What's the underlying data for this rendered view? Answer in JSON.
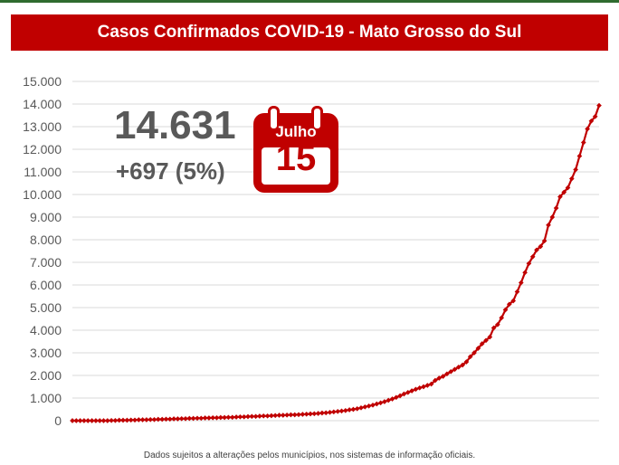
{
  "header": {
    "title": "Casos Confirmados COVID-19 - Mato Grosso do Sul"
  },
  "highlight": {
    "total": "14.631",
    "delta": "+697 (5%)",
    "month": "Julho",
    "day": "15"
  },
  "footnote": "Dados sujeitos a alterações pelos municípios, nos sistemas de informação oficiais.",
  "colors": {
    "accent": "#c00000",
    "text_gray": "#595959",
    "grid": "#d9d9d9"
  },
  "chart_data": {
    "type": "line",
    "title": "Casos Confirmados COVID-19 - Mato Grosso do Sul",
    "xlabel": "",
    "ylabel": "",
    "ylim": [
      0,
      15000
    ],
    "y_ticks": [
      "0",
      "1.000",
      "2.000",
      "3.000",
      "4.000",
      "5.000",
      "6.000",
      "7.000",
      "8.000",
      "9.000",
      "10.000",
      "11.000",
      "12.000",
      "13.000",
      "14.000",
      "15.000"
    ],
    "grid": true,
    "legend": "none",
    "series": [
      {
        "values": [
          0,
          0,
          0,
          0,
          0,
          0,
          0,
          0,
          0,
          0,
          10,
          10,
          20,
          20,
          20,
          30,
          30,
          40,
          40,
          40,
          50,
          50,
          60,
          60,
          70,
          70,
          80,
          80,
          90,
          90,
          100,
          100,
          110,
          110,
          120,
          120,
          130,
          130,
          140,
          140,
          150,
          150,
          160,
          170,
          170,
          180,
          190,
          190,
          200,
          210,
          210,
          220,
          230,
          240,
          240,
          250,
          260,
          260,
          270,
          280,
          290,
          300,
          310,
          320,
          340,
          350,
          370,
          390,
          410,
          430,
          450,
          480,
          500,
          530,
          570,
          610,
          650,
          690,
          740,
          790,
          840,
          900,
          960,
          1030,
          1100,
          1180,
          1250,
          1320,
          1390,
          1450,
          1500,
          1560,
          1620,
          1780,
          1880,
          1960,
          2070,
          2170,
          2270,
          2370,
          2460,
          2600,
          2830,
          3000,
          3200,
          3400,
          3550,
          3700,
          4100,
          4250,
          4550,
          4900,
          5150,
          5300,
          5700,
          6100,
          6550,
          6950,
          7250,
          7550,
          7700,
          7950,
          8650,
          9000,
          9400,
          9900,
          10100,
          10300,
          10700,
          11100,
          11700,
          12300,
          12900,
          13250,
          13450,
          13934
        ]
      }
    ]
  }
}
